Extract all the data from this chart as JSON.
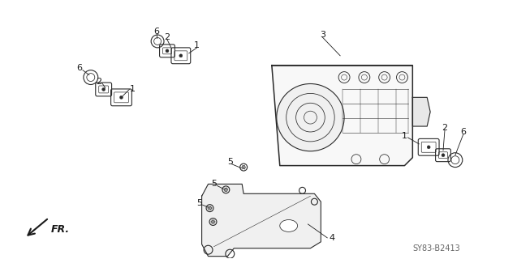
{
  "background_color": "#ffffff",
  "diagram_code": "SY83-B2413",
  "fr_label": "FR.",
  "line_color": "#2a2a2a",
  "text_color": "#1a1a1a",
  "font_size_label": 8,
  "font_size_code": 7
}
